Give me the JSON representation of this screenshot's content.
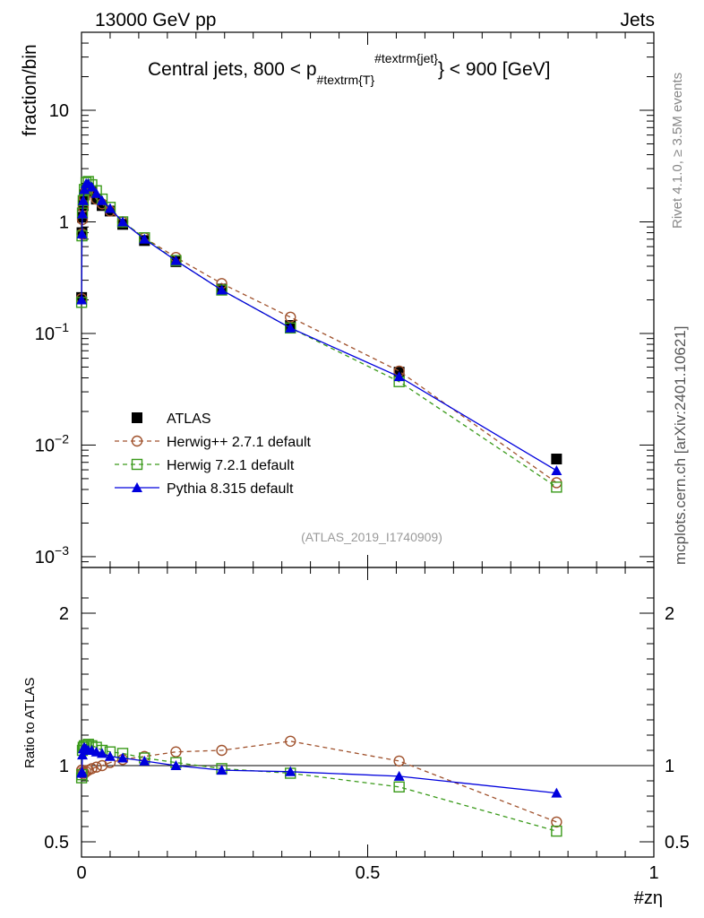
{
  "header": {
    "left": "13000 GeV pp",
    "right": "Jets"
  },
  "side_labels": {
    "rivet": "Rivet 4.1.0, ≥ 3.5M events",
    "mcplots": "mcplots.cern.ch [arXiv:2401.10621]"
  },
  "chart_data": {
    "type": "line",
    "title_parts": {
      "prefix": "Central jets, 800 < p",
      "subscript": "#textrm{T",
      "close": "}",
      "superscript": "#textrm{jet}",
      "suffix": "} < 900 [GeV]"
    },
    "watermark": "(ATLAS_2019_I1740909)",
    "xlabel": "#zη",
    "ylabel_main": "fraction/bin",
    "ylabel_ratio": "Ratio to ATLAS",
    "xlim": [
      0,
      1
    ],
    "ylim_main": [
      0.0008,
      50
    ],
    "ylim_ratio": [
      0.4,
      2.3
    ],
    "yscale_main": "log",
    "legend_position": "lower-left",
    "x_ticks": [
      {
        "v": 0,
        "label": "0"
      },
      {
        "v": 0.5,
        "label": "0.5"
      },
      {
        "v": 1,
        "label": "1"
      }
    ],
    "y_ticks_main": [
      {
        "v": 0.001,
        "base": "10",
        "exp": "−3"
      },
      {
        "v": 0.01,
        "base": "10",
        "exp": "−2"
      },
      {
        "v": 0.1,
        "base": "10",
        "exp": "−1"
      },
      {
        "v": 1,
        "base": "1",
        "exp": ""
      },
      {
        "v": 10,
        "base": "10",
        "exp": ""
      }
    ],
    "y_ticks_ratio": [
      {
        "v": 0.5,
        "label": "0.5"
      },
      {
        "v": 1,
        "label": "1"
      },
      {
        "v": 2,
        "label": "2"
      }
    ],
    "x": [
      0.0002,
      0.0008,
      0.0016,
      0.003,
      0.005,
      0.008,
      0.012,
      0.018,
      0.026,
      0.036,
      0.05,
      0.072,
      0.11,
      0.165,
      0.245,
      0.365,
      0.555,
      0.83
    ],
    "series": [
      {
        "name": "ATLAS",
        "color": "#000000",
        "marker": "square-filled",
        "line": "none",
        "values": [
          0.21,
          0.8,
          1.1,
          1.4,
          1.75,
          2.0,
          2.0,
          1.85,
          1.6,
          1.4,
          1.25,
          0.95,
          0.68,
          0.44,
          0.25,
          0.118,
          0.045,
          0.0075
        ],
        "ratio": [
          1,
          1,
          1,
          1,
          1,
          1,
          1,
          1,
          1,
          1,
          1,
          1,
          1,
          1,
          1,
          1,
          1,
          1
        ]
      },
      {
        "name": "Herwig++ 2.7.1 default",
        "color": "#a0522d",
        "marker": "circle-open",
        "line": "dashed",
        "values": [
          0.205,
          0.78,
          1.05,
          1.35,
          1.65,
          1.9,
          1.95,
          1.85,
          1.6,
          1.45,
          1.25,
          1.0,
          0.72,
          0.48,
          0.28,
          0.14,
          0.046,
          0.0046
        ],
        "ratio": [
          0.97,
          0.97,
          0.95,
          0.96,
          0.95,
          0.96,
          0.97,
          0.98,
          0.99,
          1.0,
          1.02,
          1.04,
          1.06,
          1.09,
          1.1,
          1.16,
          1.03,
          0.63
        ]
      },
      {
        "name": "Herwig 7.2.1 default",
        "color": "#3a9a1a",
        "marker": "square-open",
        "line": "dashed",
        "values": [
          0.19,
          0.75,
          1.2,
          1.55,
          1.95,
          2.25,
          2.3,
          2.15,
          1.9,
          1.6,
          1.35,
          1.0,
          0.72,
          0.45,
          0.245,
          0.112,
          0.037,
          0.0042
        ],
        "ratio": [
          0.92,
          0.94,
          1.1,
          1.12,
          1.13,
          1.13,
          1.14,
          1.13,
          1.12,
          1.1,
          1.09,
          1.08,
          1.05,
          1.02,
          0.98,
          0.95,
          0.86,
          0.57
        ]
      },
      {
        "name": "Pythia 8.315 default",
        "color": "#0000dd",
        "marker": "triangle-filled",
        "line": "solid",
        "values": [
          0.2,
          0.78,
          1.18,
          1.55,
          1.95,
          2.2,
          2.2,
          2.05,
          1.8,
          1.55,
          1.32,
          1.0,
          0.7,
          0.45,
          0.245,
          0.112,
          0.041,
          0.0059
        ],
        "ratio": [
          0.95,
          0.96,
          1.07,
          1.11,
          1.12,
          1.11,
          1.1,
          1.1,
          1.09,
          1.08,
          1.06,
          1.05,
          1.03,
          1.0,
          0.97,
          0.96,
          0.93,
          0.82
        ]
      }
    ]
  }
}
